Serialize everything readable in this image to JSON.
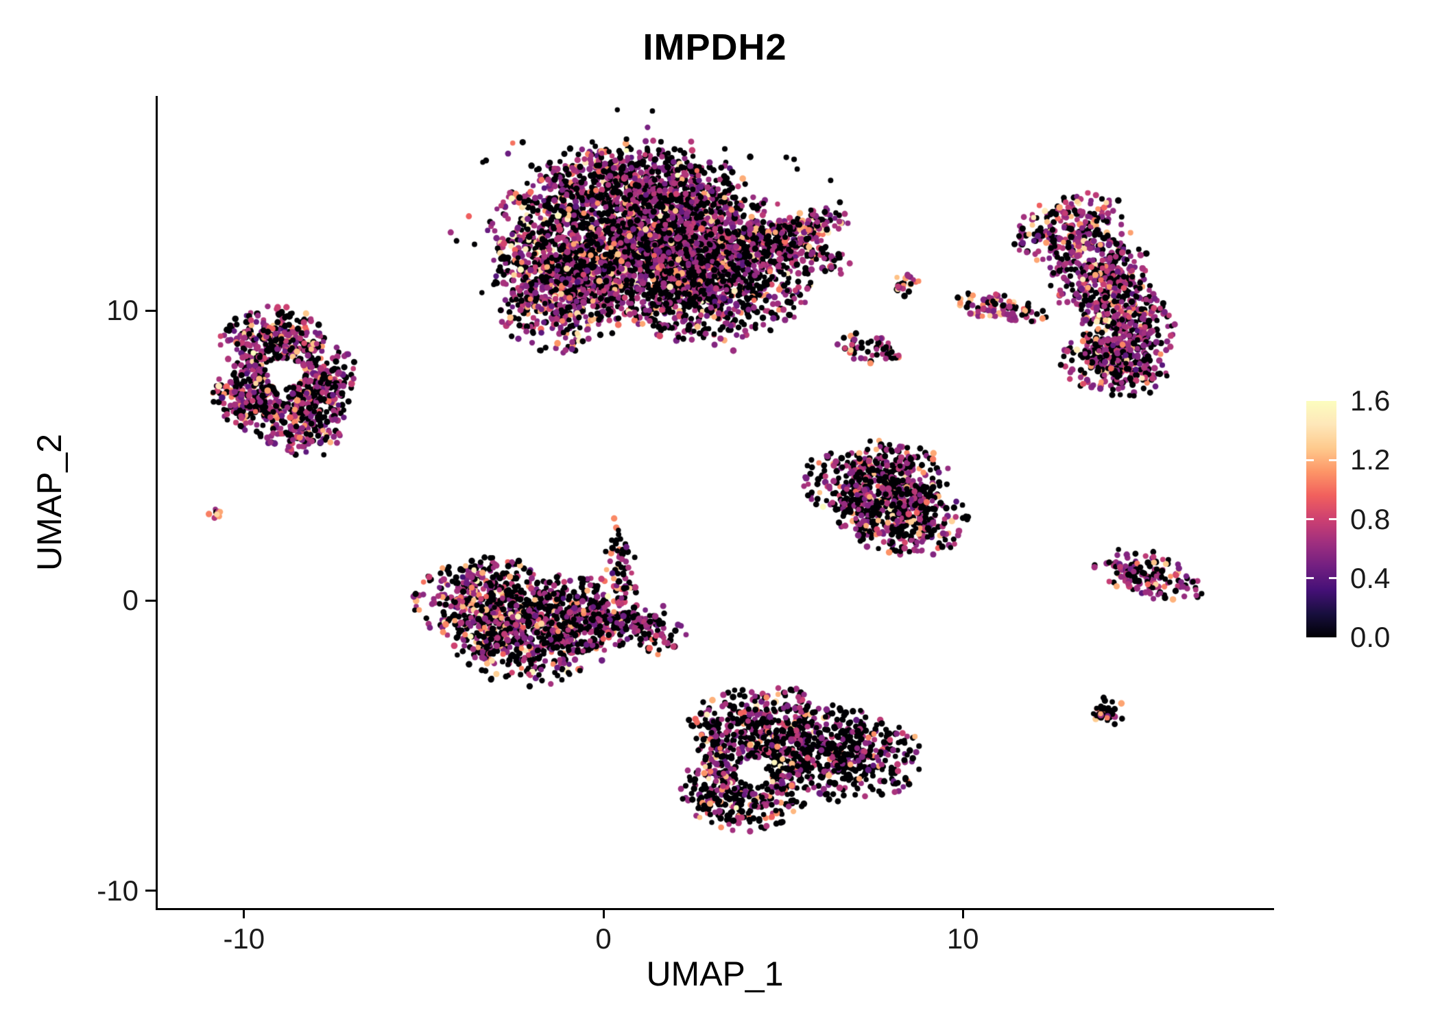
{
  "chart_data": {
    "type": "scatter",
    "title": "IMPDH2",
    "xlabel": "UMAP_1",
    "ylabel": "UMAP_2",
    "xlim": [
      -12.4,
      18.6
    ],
    "ylim": [
      -10.6,
      17.4
    ],
    "grid": false,
    "legend_position": "right",
    "point_radius": 4.2,
    "x_ticks": [
      {
        "value": -10,
        "label": "-10"
      },
      {
        "value": 0,
        "label": "0"
      },
      {
        "value": 10,
        "label": "10"
      }
    ],
    "y_ticks": [
      {
        "value": -10,
        "label": "-10"
      },
      {
        "value": 0,
        "label": "0"
      },
      {
        "value": 10,
        "label": "10"
      }
    ],
    "colorbar": {
      "palette": "magma",
      "vmin": 0.0,
      "vmax": 1.6,
      "ticks": [
        {
          "value": 0.0,
          "label": "0.0"
        },
        {
          "value": 0.4,
          "label": "0.4"
        },
        {
          "value": 0.8,
          "label": "0.8"
        },
        {
          "value": 1.2,
          "label": "1.2"
        },
        {
          "value": 1.6,
          "label": "1.6"
        }
      ],
      "stops": [
        {
          "t": 0.0,
          "c": "#000004"
        },
        {
          "t": 0.1,
          "c": "#180f3e"
        },
        {
          "t": 0.2,
          "c": "#451077"
        },
        {
          "t": 0.3,
          "c": "#721f81"
        },
        {
          "t": 0.4,
          "c": "#9f2f7f"
        },
        {
          "t": 0.5,
          "c": "#cd4071"
        },
        {
          "t": 0.6,
          "c": "#f1605d"
        },
        {
          "t": 0.7,
          "c": "#fd9567"
        },
        {
          "t": 0.8,
          "c": "#feca8d"
        },
        {
          "t": 0.9,
          "c": "#fee7b9"
        },
        {
          "t": 1.0,
          "c": "#fcfdbf"
        }
      ]
    },
    "expression_profile": {
      "zero": 0.0,
      "mid_mean": 0.62,
      "mid_sd": 0.1,
      "high_mean": 1.15,
      "high_sd": 0.12,
      "top_mean": 1.5,
      "top_sd": 0.07
    },
    "clusters": [
      {
        "name": "top-center-core",
        "n": 1800,
        "cx": 0.6,
        "cy": 12.6,
        "sx": 1.9,
        "sy": 1.5,
        "rot": 0,
        "clip": 2.0,
        "p": [
          0.44,
          0.46,
          0.08,
          0.02
        ]
      },
      {
        "name": "top-center-right",
        "n": 1200,
        "cx": 2.9,
        "cy": 11.4,
        "sx": 1.5,
        "sy": 1.3,
        "rot": -10,
        "clip": 2.0,
        "p": [
          0.5,
          0.42,
          0.07,
          0.01
        ]
      },
      {
        "name": "top-center-left",
        "n": 500,
        "cx": -1.2,
        "cy": 10.7,
        "sx": 1.0,
        "sy": 1.1,
        "rot": 0,
        "clip": 2.0,
        "p": [
          0.45,
          0.45,
          0.09,
          0.01
        ]
      },
      {
        "name": "top-center-upper",
        "n": 450,
        "cx": 1.2,
        "cy": 14.3,
        "sx": 1.5,
        "sy": 0.8,
        "rot": -8,
        "clip": 2.0,
        "p": [
          0.5,
          0.42,
          0.07,
          0.01
        ]
      },
      {
        "name": "top-center-arm",
        "n": 170,
        "cx": 5.0,
        "cy": 12.1,
        "sx": 0.95,
        "sy": 0.35,
        "rot": -18,
        "clip": 2.0,
        "p": [
          0.45,
          0.45,
          0.1,
          0.0
        ]
      },
      {
        "name": "top-center-arm-upper",
        "n": 120,
        "cx": 5.7,
        "cy": 12.9,
        "sx": 0.6,
        "sy": 0.3,
        "rot": 18,
        "clip": 2.0,
        "p": [
          0.4,
          0.45,
          0.14,
          0.01
        ]
      },
      {
        "name": "top-center-halo",
        "n": 160,
        "cx": 1.3,
        "cy": 12.4,
        "sx": 3.0,
        "sy": 2.3,
        "rot": 0,
        "clip": 2.0,
        "p": [
          0.62,
          0.33,
          0.05,
          0.0
        ]
      },
      {
        "name": "left-upper",
        "n": 300,
        "cx": -9.2,
        "cy": 8.9,
        "sx": 0.75,
        "sy": 0.65,
        "rot": 0,
        "clip": 2.0,
        "hole": [
          -8.85,
          7.85,
          0.5
        ],
        "p": [
          0.42,
          0.45,
          0.11,
          0.02
        ]
      },
      {
        "name": "left-right-lobe",
        "n": 260,
        "cx": -8.0,
        "cy": 7.5,
        "sx": 0.6,
        "sy": 0.9,
        "rot": 0,
        "clip": 2.0,
        "hole": [
          -8.85,
          7.85,
          0.5
        ],
        "p": [
          0.45,
          0.44,
          0.1,
          0.01
        ]
      },
      {
        "name": "left-lower-lobe",
        "n": 260,
        "cx": -9.6,
        "cy": 7.0,
        "sx": 0.65,
        "sy": 0.6,
        "rot": 0,
        "clip": 2.0,
        "hole": [
          -8.85,
          7.85,
          0.5
        ],
        "p": [
          0.45,
          0.45,
          0.09,
          0.01
        ]
      },
      {
        "name": "left-bottom-tip",
        "n": 130,
        "cx": -8.5,
        "cy": 5.9,
        "sx": 0.7,
        "sy": 0.45,
        "rot": -15,
        "clip": 2.0,
        "p": [
          0.4,
          0.49,
          0.1,
          0.01
        ]
      },
      {
        "name": "left-tiny-dot",
        "n": 9,
        "cx": -10.8,
        "cy": 3.0,
        "sx": 0.13,
        "sy": 0.11,
        "rot": 0,
        "clip": 1.5,
        "p": [
          0.1,
          0.35,
          0.5,
          0.05
        ]
      },
      {
        "name": "center-left-west",
        "n": 450,
        "cx": -3.3,
        "cy": -0.1,
        "sx": 1.0,
        "sy": 0.85,
        "rot": 0,
        "clip": 2.0,
        "p": [
          0.5,
          0.38,
          0.1,
          0.02
        ]
      },
      {
        "name": "center-left-south",
        "n": 450,
        "cx": -2.0,
        "cy": -1.3,
        "sx": 1.1,
        "sy": 0.85,
        "rot": 0,
        "clip": 2.0,
        "p": [
          0.52,
          0.37,
          0.1,
          0.01
        ]
      },
      {
        "name": "center-left-east",
        "n": 280,
        "cx": -0.6,
        "cy": -0.4,
        "sx": 0.9,
        "sy": 0.7,
        "rot": 0,
        "clip": 2.0,
        "p": [
          0.5,
          0.4,
          0.09,
          0.01
        ]
      },
      {
        "name": "center-left-tail",
        "n": 140,
        "cx": 1.0,
        "cy": -0.9,
        "sx": 0.8,
        "sy": 0.45,
        "rot": -15,
        "clip": 2.0,
        "p": [
          0.55,
          0.4,
          0.05,
          0.0
        ]
      },
      {
        "name": "center-left-spike",
        "n": 55,
        "cx": 0.45,
        "cy": 1.4,
        "sx": 0.22,
        "sy": 0.75,
        "rot": 10,
        "clip": 2.0,
        "p": [
          0.48,
          0.37,
          0.15,
          0.0
        ]
      },
      {
        "name": "center-right-upper",
        "n": 420,
        "cx": 7.6,
        "cy": 4.1,
        "sx": 1.05,
        "sy": 0.75,
        "rot": 0,
        "clip": 2.0,
        "p": [
          0.55,
          0.35,
          0.09,
          0.01
        ]
      },
      {
        "name": "center-right-lower",
        "n": 350,
        "cx": 8.3,
        "cy": 2.9,
        "sx": 0.95,
        "sy": 0.7,
        "rot": -12,
        "clip": 2.0,
        "p": [
          0.55,
          0.36,
          0.08,
          0.01
        ]
      },
      {
        "name": "bottom-center-west",
        "n": 420,
        "cx": 4.6,
        "cy": -4.6,
        "sx": 1.15,
        "sy": 0.85,
        "rot": -8,
        "clip": 2.0,
        "hole": [
          4.2,
          -5.9,
          0.5
        ],
        "p": [
          0.58,
          0.33,
          0.08,
          0.01
        ]
      },
      {
        "name": "bottom-center-east",
        "n": 430,
        "cx": 6.6,
        "cy": -5.3,
        "sx": 1.2,
        "sy": 0.85,
        "rot": -10,
        "clip": 2.0,
        "p": [
          0.66,
          0.3,
          0.04,
          0.0
        ]
      },
      {
        "name": "bottom-center-south",
        "n": 300,
        "cx": 3.9,
        "cy": -6.5,
        "sx": 0.9,
        "sy": 0.75,
        "rot": 0,
        "clip": 2.0,
        "hole": [
          4.2,
          -5.9,
          0.5
        ],
        "p": [
          0.6,
          0.31,
          0.08,
          0.01
        ]
      },
      {
        "name": "bottom-center-west-edge",
        "n": 60,
        "cx": 3.1,
        "cy": -5.6,
        "sx": 0.28,
        "sy": 0.95,
        "rot": 8,
        "clip": 2.0,
        "p": [
          0.35,
          0.35,
          0.27,
          0.03
        ]
      },
      {
        "name": "right-crescent-top",
        "n": 220,
        "cx": 12.9,
        "cy": 12.9,
        "sx": 0.85,
        "sy": 0.55,
        "rot": 25,
        "clip": 2.0,
        "p": [
          0.38,
          0.5,
          0.1,
          0.02
        ]
      },
      {
        "name": "right-crescent-mid",
        "n": 330,
        "cx": 13.9,
        "cy": 11.2,
        "sx": 0.75,
        "sy": 0.9,
        "rot": 10,
        "clip": 2.0,
        "p": [
          0.38,
          0.52,
          0.09,
          0.01
        ]
      },
      {
        "name": "right-crescent-lower",
        "n": 300,
        "cx": 14.6,
        "cy": 9.4,
        "sx": 0.65,
        "sy": 0.85,
        "rot": 0,
        "clip": 2.0,
        "p": [
          0.4,
          0.5,
          0.09,
          0.01
        ]
      },
      {
        "name": "right-crescent-bottom",
        "n": 220,
        "cx": 14.1,
        "cy": 8.1,
        "sx": 0.85,
        "sy": 0.5,
        "rot": -20,
        "clip": 2.0,
        "p": [
          0.42,
          0.48,
          0.09,
          0.01
        ]
      },
      {
        "name": "mid-small-dot",
        "n": 22,
        "cx": 8.4,
        "cy": 10.9,
        "sx": 0.22,
        "sy": 0.22,
        "rot": 0,
        "clip": 1.8,
        "p": [
          0.3,
          0.4,
          0.3,
          0.0
        ]
      },
      {
        "name": "mid-streak",
        "n": 90,
        "cx": 11.0,
        "cy": 10.1,
        "sx": 0.75,
        "sy": 0.22,
        "rot": -12,
        "clip": 2.0,
        "p": [
          0.35,
          0.45,
          0.2,
          0.0
        ]
      },
      {
        "name": "mid-small-streak",
        "n": 55,
        "cx": 7.4,
        "cy": 8.7,
        "sx": 0.5,
        "sy": 0.25,
        "rot": -15,
        "clip": 2.0,
        "p": [
          0.45,
          0.4,
          0.15,
          0.0
        ]
      },
      {
        "name": "right-arrow",
        "n": 150,
        "cx": 15.2,
        "cy": 0.9,
        "sx": 0.85,
        "sy": 0.4,
        "rot": -18,
        "clip": 2.0,
        "p": [
          0.42,
          0.5,
          0.08,
          0.0
        ]
      },
      {
        "name": "bottom-right-dot",
        "n": 45,
        "cx": 14.0,
        "cy": -3.8,
        "sx": 0.28,
        "sy": 0.3,
        "rot": 0,
        "clip": 1.8,
        "p": [
          0.72,
          0.13,
          0.14,
          0.01
        ]
      }
    ]
  },
  "colors": {
    "background": "#ffffff",
    "axis": "#000000",
    "text": "#1a1a1a",
    "title": "#000000"
  }
}
